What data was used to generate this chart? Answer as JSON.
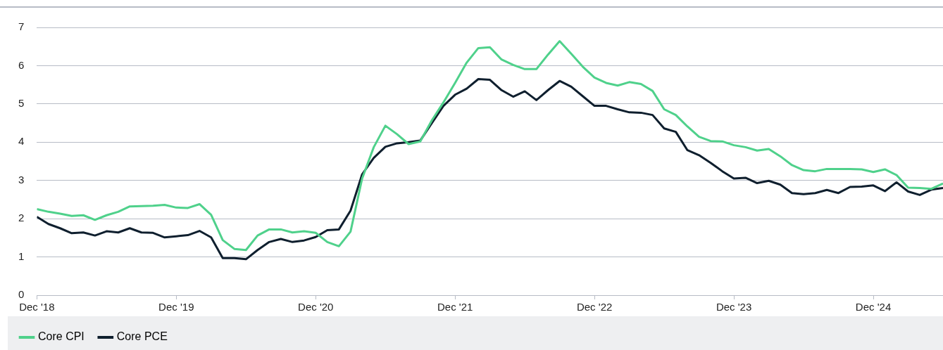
{
  "chart_data": {
    "type": "line",
    "x": [
      "2018-12",
      "2019-01",
      "2019-02",
      "2019-03",
      "2019-04",
      "2019-05",
      "2019-06",
      "2019-07",
      "2019-08",
      "2019-09",
      "2019-10",
      "2019-11",
      "2019-12",
      "2020-01",
      "2020-02",
      "2020-03",
      "2020-04",
      "2020-05",
      "2020-06",
      "2020-07",
      "2020-08",
      "2020-09",
      "2020-10",
      "2020-11",
      "2020-12",
      "2021-01",
      "2021-02",
      "2021-03",
      "2021-04",
      "2021-05",
      "2021-06",
      "2021-07",
      "2021-08",
      "2021-09",
      "2021-10",
      "2021-11",
      "2021-12",
      "2022-01",
      "2022-02",
      "2022-03",
      "2022-04",
      "2022-05",
      "2022-06",
      "2022-07",
      "2022-08",
      "2022-09",
      "2022-10",
      "2022-11",
      "2022-12",
      "2023-01",
      "2023-02",
      "2023-03",
      "2023-04",
      "2023-05",
      "2023-06",
      "2023-07",
      "2023-08",
      "2023-09",
      "2023-10",
      "2023-11",
      "2023-12",
      "2024-01",
      "2024-02",
      "2024-03",
      "2024-04",
      "2024-05",
      "2024-06",
      "2024-07",
      "2024-08",
      "2024-09",
      "2024-10",
      "2024-11",
      "2024-12",
      "2025-01",
      "2025-02",
      "2025-03",
      "2025-04",
      "2025-05",
      "2025-06"
    ],
    "series": [
      {
        "name": "Core CPI",
        "color": "#4fd18b",
        "values": [
          2.25,
          2.18,
          2.13,
          2.07,
          2.09,
          1.97,
          2.09,
          2.18,
          2.32,
          2.33,
          2.34,
          2.36,
          2.29,
          2.28,
          2.38,
          2.1,
          1.44,
          1.21,
          1.18,
          1.56,
          1.72,
          1.72,
          1.64,
          1.67,
          1.63,
          1.39,
          1.28,
          1.66,
          3.05,
          3.87,
          4.43,
          4.21,
          3.95,
          4.02,
          4.57,
          5.04,
          5.55,
          6.08,
          6.46,
          6.48,
          6.16,
          6.02,
          5.91,
          5.91,
          6.29,
          6.64,
          6.31,
          5.97,
          5.69,
          5.55,
          5.48,
          5.57,
          5.52,
          5.34,
          4.86,
          4.71,
          4.41,
          4.14,
          4.03,
          4.02,
          3.92,
          3.87,
          3.78,
          3.82,
          3.63,
          3.4,
          3.27,
          3.24,
          3.3,
          3.3,
          3.3,
          3.29,
          3.22,
          3.29,
          3.14,
          2.81,
          2.8,
          2.78,
          2.92
        ]
      },
      {
        "name": "Core PCE",
        "color": "#0f1f2e",
        "values": [
          2.05,
          1.86,
          1.75,
          1.62,
          1.64,
          1.56,
          1.67,
          1.64,
          1.75,
          1.64,
          1.63,
          1.51,
          1.54,
          1.57,
          1.68,
          1.51,
          0.97,
          0.97,
          0.94,
          1.18,
          1.39,
          1.47,
          1.39,
          1.43,
          1.52,
          1.7,
          1.72,
          2.21,
          3.16,
          3.59,
          3.88,
          3.97,
          4.0,
          4.04,
          4.5,
          4.95,
          5.24,
          5.4,
          5.65,
          5.63,
          5.36,
          5.19,
          5.33,
          5.1,
          5.36,
          5.6,
          5.45,
          5.2,
          4.95,
          4.95,
          4.86,
          4.78,
          4.77,
          4.71,
          4.36,
          4.27,
          3.79,
          3.66,
          3.46,
          3.24,
          3.05,
          3.07,
          2.93,
          2.99,
          2.89,
          2.67,
          2.64,
          2.67,
          2.75,
          2.67,
          2.83,
          2.84,
          2.87,
          2.72,
          2.95,
          2.71,
          2.62,
          2.76,
          2.8
        ]
      }
    ],
    "xlim": [
      "2018-12",
      "2025-06"
    ],
    "xticks": [
      {
        "value": "2018-12",
        "label": "Dec '18"
      },
      {
        "value": "2019-12",
        "label": "Dec '19"
      },
      {
        "value": "2020-12",
        "label": "Dec '20"
      },
      {
        "value": "2021-12",
        "label": "Dec '21"
      },
      {
        "value": "2022-12",
        "label": "Dec '22"
      },
      {
        "value": "2023-12",
        "label": "Dec '23"
      },
      {
        "value": "2024-12",
        "label": "Dec '24"
      }
    ],
    "ylim": [
      0,
      7
    ],
    "yticks": [
      0,
      1,
      2,
      3,
      4,
      5,
      6,
      7
    ],
    "grid": "y",
    "legend": "bottom left",
    "marker": "none",
    "line_style": "solid"
  }
}
